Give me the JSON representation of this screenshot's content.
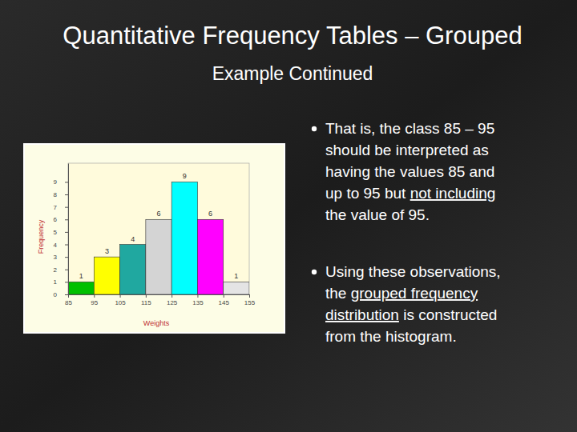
{
  "slide": {
    "title": "Quantitative Frequency Tables – Grouped",
    "subtitle": "Example Continued",
    "bullets": [
      [
        [
          {
            "text": "That is, the class 85 – 95"
          }
        ],
        [
          {
            "text": "should be interpreted as"
          }
        ],
        [
          {
            "text": "having the values 85 and"
          }
        ],
        [
          {
            "text": "up to 95 but "
          },
          {
            "text": "not including",
            "underline": true
          }
        ],
        [
          {
            "text": "the value of 95."
          }
        ]
      ],
      [
        [
          {
            "text": "Using these observations,"
          }
        ],
        [
          {
            "text": "the "
          },
          {
            "text": "grouped frequency",
            "underline": true
          }
        ],
        [
          {
            "text": "distribution",
            "underline": true
          },
          {
            "text": " is constructed"
          }
        ],
        [
          {
            "text": "from the histogram."
          }
        ]
      ]
    ]
  },
  "chart_data": {
    "type": "histogram",
    "x_label": "Weights",
    "y_label": "Frequency",
    "bins": [
      85,
      95,
      105,
      115,
      125,
      135,
      145,
      155
    ],
    "values": [
      1,
      3,
      4,
      6,
      9,
      6,
      1
    ],
    "colors": [
      "#00c000",
      "#ffff00",
      "#20a8a0",
      "#d4d4d4",
      "#00ffff",
      "#ff00ff",
      "#e4e4e4"
    ],
    "xlim": [
      85,
      155
    ],
    "xticks": [
      85,
      95,
      105,
      115,
      125,
      135,
      145,
      155
    ],
    "ylim": [
      0,
      10.5
    ],
    "yticks": [
      0,
      1,
      2,
      3,
      4,
      5,
      6,
      7,
      8,
      9
    ],
    "data_labels": true
  }
}
